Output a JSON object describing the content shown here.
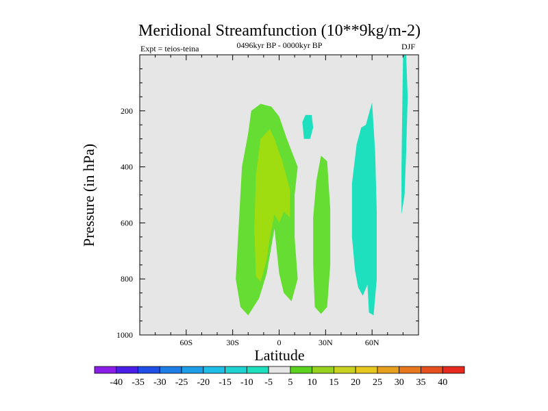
{
  "chart_data": {
    "type": "contour",
    "title": "Meridional Streamfunction (10**9kg/m-2)",
    "left_string": "Expt = teios-teina",
    "center_string": "0496kyr BP - 0000kyr BP",
    "right_string": "DJF",
    "xlabel": "Latitude",
    "ylabel": "Pressure (in hPa)",
    "xlim": [
      -90,
      90
    ],
    "ylim": [
      1000,
      0
    ],
    "x_ticks": [
      {
        "value": -60,
        "label": "60S"
      },
      {
        "value": -30,
        "label": "30S"
      },
      {
        "value": 0,
        "label": "0"
      },
      {
        "value": 30,
        "label": "30N"
      },
      {
        "value": 60,
        "label": "60N"
      }
    ],
    "y_ticks": [
      {
        "value": 200,
        "label": "200"
      },
      {
        "value": 400,
        "label": "400"
      },
      {
        "value": 600,
        "label": "600"
      },
      {
        "value": 800,
        "label": "800"
      },
      {
        "value": 1000,
        "label": "1000"
      }
    ],
    "background_color": "#e6e6e6",
    "colorbar": {
      "labels": [
        "-40",
        "-35",
        "-30",
        "-25",
        "-20",
        "-15",
        "-10",
        "-5",
        "5",
        "10",
        "15",
        "20",
        "25",
        "30",
        "35",
        "40"
      ],
      "colors": [
        "#8a1ee6",
        "#4a1ee6",
        "#1e4ee6",
        "#1e7ee6",
        "#1e9ee6",
        "#1ebee6",
        "#1ed2d2",
        "#1ee0be",
        "#e6e6e6",
        "#5ad21e",
        "#96d21e",
        "#c8d21e",
        "#e6c81e",
        "#e6a01e",
        "#e6781e",
        "#e6501e",
        "#e6281e"
      ]
    },
    "regions": [
      {
        "name": "positive-5-to-10-tropics",
        "color": "#66dd33",
        "points": [
          [
            -20,
            280
          ],
          [
            -18,
            200
          ],
          [
            -12,
            175
          ],
          [
            -5,
            185
          ],
          [
            0,
            220
          ],
          [
            5,
            300
          ],
          [
            12,
            400
          ],
          [
            10,
            500
          ],
          [
            10,
            650
          ],
          [
            12,
            800
          ],
          [
            8,
            880
          ],
          [
            3,
            850
          ],
          [
            0,
            780
          ],
          [
            -3,
            620
          ],
          [
            -8,
            780
          ],
          [
            -13,
            870
          ],
          [
            -20,
            930
          ],
          [
            -25,
            900
          ],
          [
            -28,
            800
          ],
          [
            -26,
            600
          ],
          [
            -24,
            400
          ]
        ]
      },
      {
        "name": "positive-10-to-15-tropics",
        "color": "#a0dd10",
        "points": [
          [
            -15,
            430
          ],
          [
            -12,
            300
          ],
          [
            -6,
            265
          ],
          [
            -3,
            300
          ],
          [
            2,
            380
          ],
          [
            7,
            480
          ],
          [
            7,
            580
          ],
          [
            3,
            560
          ],
          [
            0,
            600
          ],
          [
            -3,
            570
          ],
          [
            -6,
            650
          ],
          [
            -8,
            730
          ],
          [
            -12,
            810
          ],
          [
            -15,
            790
          ],
          [
            -16,
            620
          ]
        ]
      },
      {
        "name": "positive-5-to-10-20n",
        "color": "#66dd33",
        "points": [
          [
            22,
            580
          ],
          [
            24,
            450
          ],
          [
            27,
            360
          ],
          [
            31,
            380
          ],
          [
            33,
            550
          ],
          [
            33,
            750
          ],
          [
            31,
            900
          ],
          [
            27,
            925
          ],
          [
            23,
            900
          ],
          [
            22,
            750
          ]
        ]
      },
      {
        "name": "negative-5-to-10-subtropic",
        "color": "#1ee0be",
        "points": [
          [
            15,
            240
          ],
          [
            17,
            215
          ],
          [
            21,
            215
          ],
          [
            22,
            260
          ],
          [
            20,
            300
          ],
          [
            16,
            300
          ]
        ]
      },
      {
        "name": "negative-5-to-10-midlat",
        "color": "#1ee0be",
        "points": [
          [
            47,
            460
          ],
          [
            50,
            320
          ],
          [
            53,
            260
          ],
          [
            56,
            250
          ],
          [
            58,
            210
          ],
          [
            60,
            170
          ],
          [
            62,
            350
          ],
          [
            63,
            560
          ],
          [
            63,
            800
          ],
          [
            61,
            930
          ],
          [
            58,
            920
          ],
          [
            57,
            820
          ],
          [
            54,
            860
          ],
          [
            51,
            830
          ],
          [
            49,
            770
          ],
          [
            47,
            650
          ]
        ]
      },
      {
        "name": "negative-5-to-10-highlat",
        "color": "#1ee0be",
        "points": [
          [
            79,
            570
          ],
          [
            79,
            400
          ],
          [
            80,
            0
          ],
          [
            82,
            0
          ],
          [
            83,
            150
          ],
          [
            82,
            350
          ],
          [
            81,
            500
          ]
        ]
      }
    ]
  }
}
